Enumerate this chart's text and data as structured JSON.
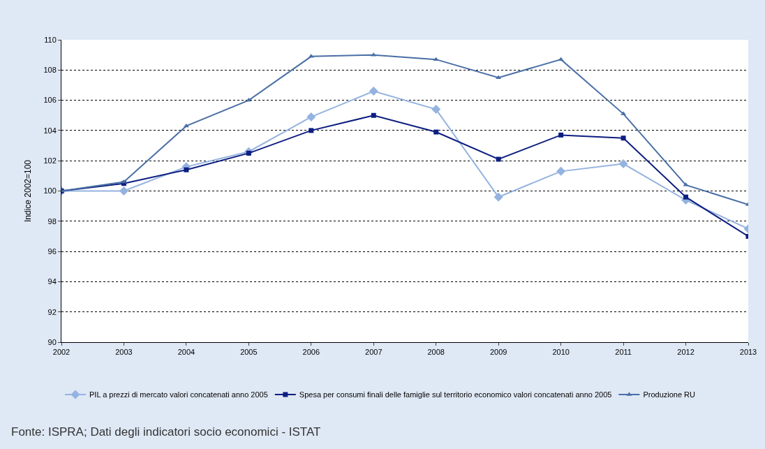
{
  "chart_data": {
    "type": "line",
    "ylabel": "Indice 2002=100",
    "x": [
      2002,
      2003,
      2004,
      2005,
      2006,
      2007,
      2008,
      2009,
      2010,
      2011,
      2012,
      2013
    ],
    "series": [
      {
        "name": "PIL a prezzi di mercato valori concatenati anno 2005",
        "color": "#95b3e0",
        "marker": "diamond",
        "values": [
          100.0,
          100.0,
          101.6,
          102.6,
          104.9,
          106.6,
          105.4,
          99.6,
          101.3,
          101.8,
          99.4,
          97.5
        ]
      },
      {
        "name": "Spesa per consumi finali delle famiglie sul territorio economico valori concatenati anno 2005",
        "color": "#0d1e80",
        "marker": "square",
        "values": [
          100.0,
          100.5,
          101.4,
          102.5,
          104.0,
          105.0,
          103.9,
          102.1,
          103.7,
          103.5,
          99.6,
          97.0
        ]
      },
      {
        "name": "Produzione RU",
        "color": "#4a6fa5",
        "marker": "triangle",
        "values": [
          100.0,
          100.6,
          104.3,
          106.0,
          108.9,
          109.0,
          108.7,
          107.5,
          108.7,
          105.1,
          100.4,
          99.1
        ]
      }
    ],
    "xlim": [
      2002,
      2013
    ],
    "xticks": [
      2002,
      2003,
      2004,
      2005,
      2006,
      2007,
      2008,
      2009,
      2010,
      2011,
      2012,
      2013
    ],
    "ylim": [
      90,
      110
    ],
    "yticks": [
      90,
      92,
      94,
      96,
      98,
      100,
      102,
      104,
      106,
      108,
      110
    ],
    "grid": "y",
    "legend": "bottom",
    "line_style": "solid",
    "annotations": [
      "Fonte: ISPRA; Dati degli indicatori socio economici - ISTAT"
    ]
  }
}
